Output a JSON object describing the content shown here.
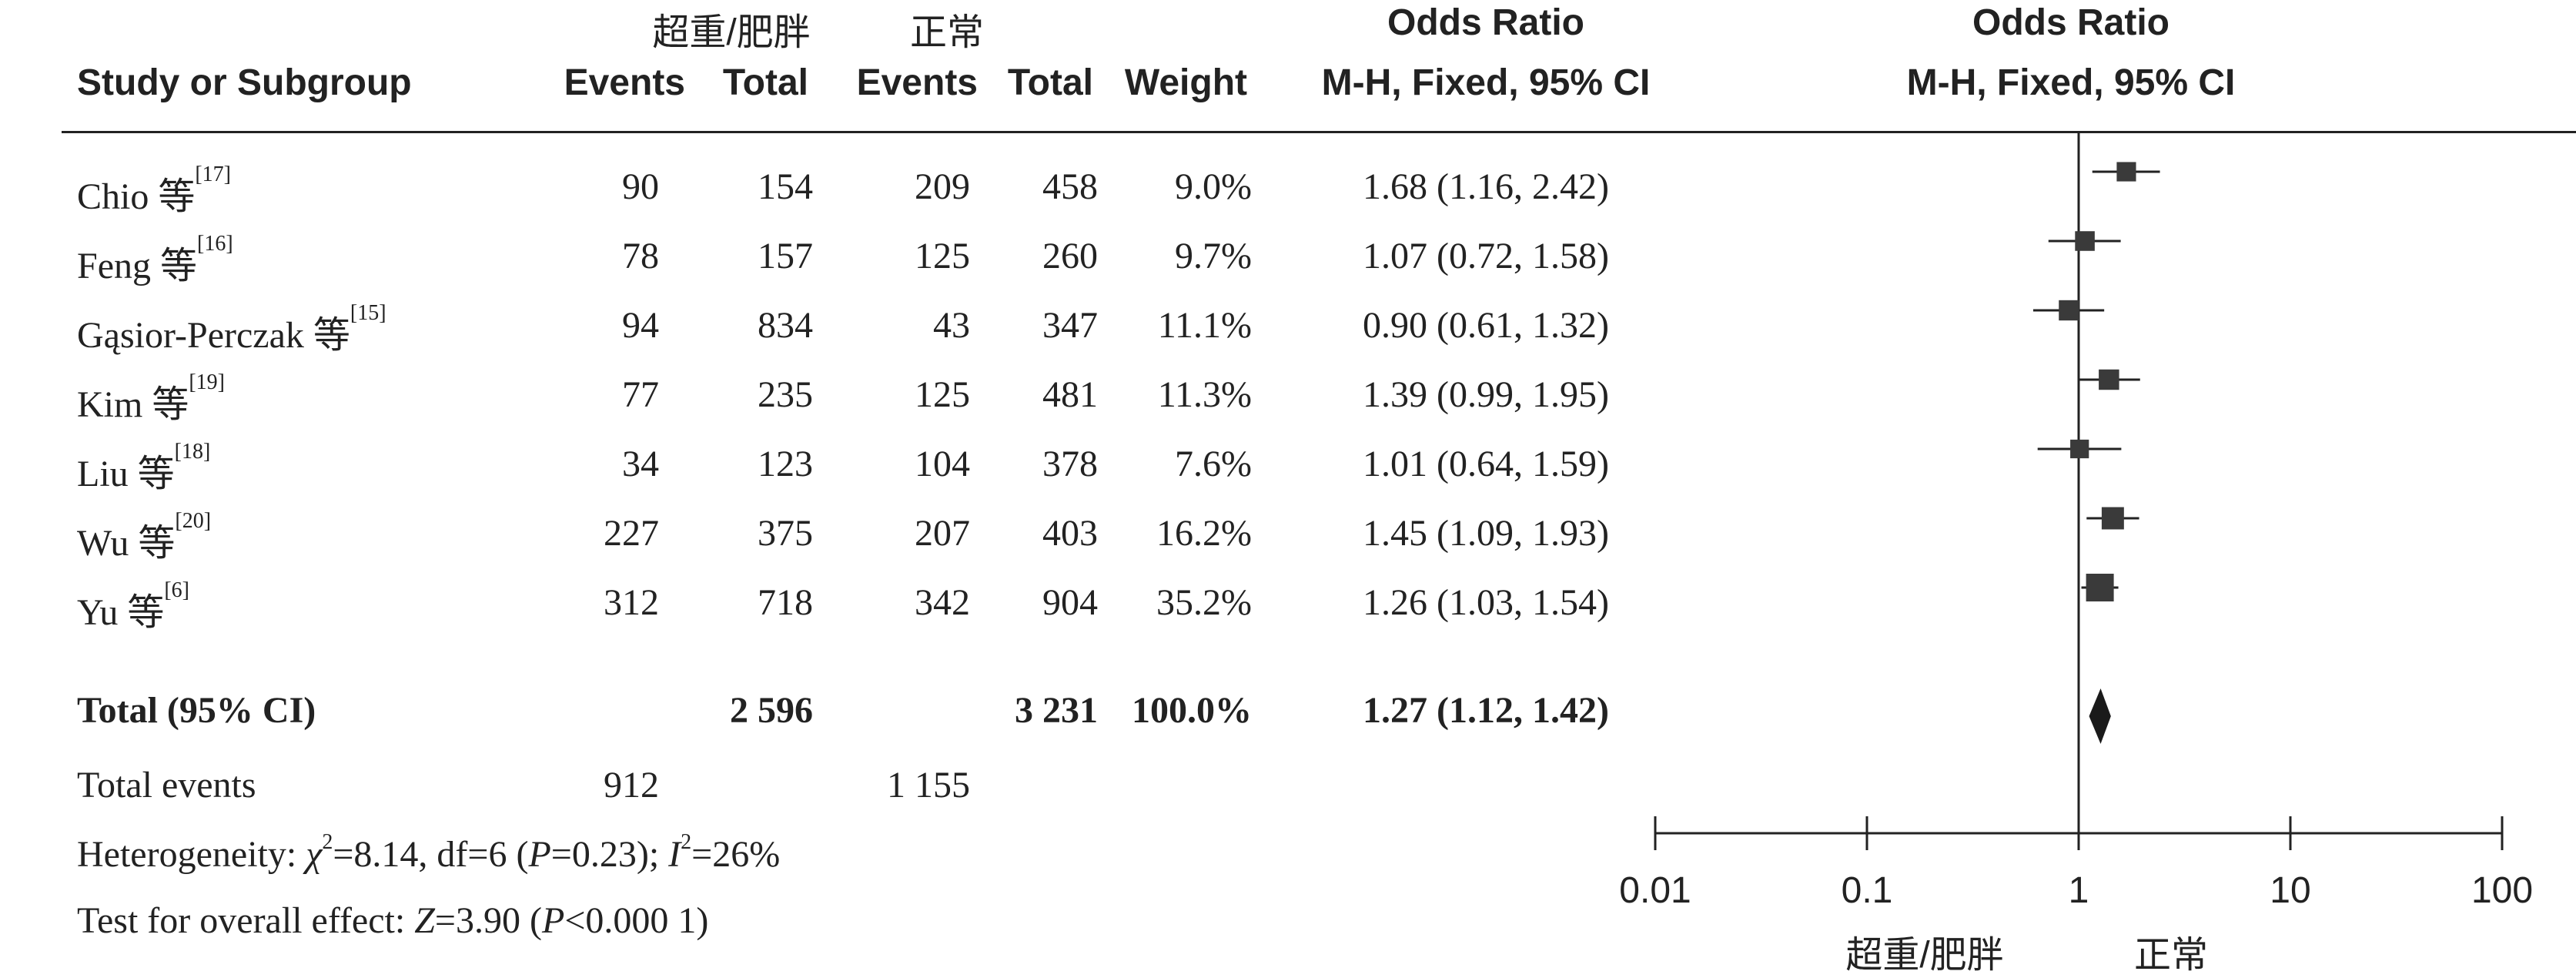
{
  "headers": {
    "group1": "超重/肥胖",
    "group2": "正常",
    "study": "Study or Subgroup",
    "events1": "Events",
    "total1": "Total",
    "events2": "Events",
    "total2": "Total",
    "weight": "Weight",
    "or_title": "Odds Ratio",
    "or_method": "M-H, Fixed, 95% CI",
    "plot_title": "Odds Ratio",
    "plot_method": "M-H, Fixed, 95% CI"
  },
  "studies": [
    {
      "name": "Chio 等",
      "ref": "[17]",
      "events1": "90",
      "total1": "154",
      "events2": "209",
      "total2": "458",
      "weight": "9.0%",
      "ci_text": "1.68 (1.16, 2.42)"
    },
    {
      "name": "Feng 等",
      "ref": "[16]",
      "events1": "78",
      "total1": "157",
      "events2": "125",
      "total2": "260",
      "weight": "9.7%",
      "ci_text": "1.07 (0.72, 1.58)"
    },
    {
      "name": "Gąsior-Perczak 等",
      "ref": "[15]",
      "events1": "94",
      "total1": "834",
      "events2": "43",
      "total2": "347",
      "weight": "11.1%",
      "ci_text": "0.90 (0.61, 1.32)"
    },
    {
      "name": "Kim 等",
      "ref": "[19]",
      "events1": "77",
      "total1": "235",
      "events2": "125",
      "total2": "481",
      "weight": "11.3%",
      "ci_text": "1.39 (0.99, 1.95)"
    },
    {
      "name": "Liu 等",
      "ref": "[18]",
      "events1": "34",
      "total1": "123",
      "events2": "104",
      "total2": "378",
      "weight": "7.6%",
      "ci_text": "1.01 (0.64, 1.59)"
    },
    {
      "name": "Wu 等",
      "ref": "[20]",
      "events1": "227",
      "total1": "375",
      "events2": "207",
      "total2": "403",
      "weight": "16.2%",
      "ci_text": "1.45 (1.09, 1.93)"
    },
    {
      "name": "Yu 等",
      "ref": "[6]",
      "events1": "312",
      "total1": "718",
      "events2": "342",
      "total2": "904",
      "weight": "35.2%",
      "ci_text": "1.26 (1.03, 1.54)"
    }
  ],
  "total": {
    "label": "Total (95% CI)",
    "total1": "2 596",
    "total2": "3 231",
    "weight": "100.0%",
    "ci_text": "1.27 (1.12, 1.42)"
  },
  "total_events": {
    "label": "Total events",
    "events1": "912",
    "events2": "1 155"
  },
  "heterogeneity": {
    "label": "Heterogeneity: ",
    "chi_sym": "χ",
    "chi_sup": "2",
    "chi_val": "=8.14, df=6 (",
    "p_sym": "P",
    "p_val": "=0.23); ",
    "i_sym": "I",
    "i_sup": "2",
    "i_val": "=26%"
  },
  "overall_effect": {
    "label": "Test for overall effect: ",
    "z_sym": "Z",
    "z_val": "=3.90 (",
    "p_sym": "P",
    "p_val": "<0.000 1)"
  },
  "axis_labels": {
    "favours_left": "超重/肥胖",
    "favours_right": "正常"
  },
  "chart_data": {
    "type": "forest",
    "title": "Odds Ratio",
    "subtitle": "M-H, Fixed, 95% CI",
    "x_scale": "log",
    "xlim": [
      0.01,
      100
    ],
    "ticks": [
      0.01,
      0.1,
      1,
      10,
      100
    ],
    "tick_labels": [
      "0.01",
      "0.1",
      "1",
      "10",
      "100"
    ],
    "reference_line": 1,
    "studies": [
      {
        "or": 1.68,
        "lower": 1.16,
        "upper": 2.42,
        "weight": 9.0
      },
      {
        "or": 1.07,
        "lower": 0.72,
        "upper": 1.58,
        "weight": 9.7
      },
      {
        "or": 0.9,
        "lower": 0.61,
        "upper": 1.32,
        "weight": 11.1
      },
      {
        "or": 1.39,
        "lower": 0.99,
        "upper": 1.95,
        "weight": 11.3
      },
      {
        "or": 1.01,
        "lower": 0.64,
        "upper": 1.59,
        "weight": 7.6
      },
      {
        "or": 1.45,
        "lower": 1.09,
        "upper": 1.93,
        "weight": 16.2
      },
      {
        "or": 1.26,
        "lower": 1.03,
        "upper": 1.54,
        "weight": 35.2
      }
    ],
    "pooled": {
      "or": 1.27,
      "lower": 1.12,
      "upper": 1.42
    },
    "marker_color": "#3a3a3a",
    "line_color": "#222222"
  }
}
